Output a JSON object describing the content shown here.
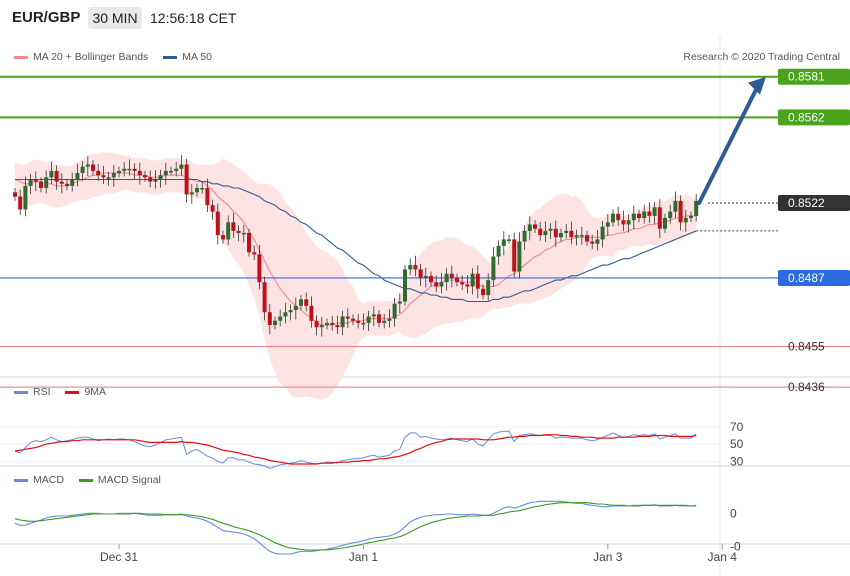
{
  "header": {
    "symbol": "EUR/GBP",
    "timeframe": "30 MIN",
    "clock": "12:56:18 CET"
  },
  "legends": {
    "bollinger": "MA 20 + Bollinger Bands",
    "ma50": "MA 50",
    "copyright": "Research © 2020 Trading Central",
    "rsi": "RSI",
    "rsi_ma": "9MA",
    "macd": "MACD",
    "macd_signal": "MACD Signal"
  },
  "colors": {
    "candle_up": "#2e6b2e",
    "candle_down": "#c0101a",
    "band_fill": "#fde3e3",
    "ma20": "#f08c8c",
    "ma50": "#2e5c93",
    "rsi": "#6a8cd8",
    "rsi_ma": "#e01010",
    "macd": "#6a8cd8",
    "macd_signal": "#3a9a20",
    "resistance": "#4aa31a",
    "support": "#f08c8c",
    "current": "#333333",
    "pivot": "#2b6be0",
    "arrow": "#2e5c93"
  },
  "chart_data": [
    {
      "type": "candlestick",
      "panel": "price",
      "y_range": [
        0.843,
        0.8586
      ],
      "x_ticks": [
        "Dec 31",
        "Jan 1",
        "Jan 3",
        "Jan 4"
      ],
      "levels": [
        {
          "kind": "resistance",
          "label": "0.8581",
          "value": 0.8581
        },
        {
          "kind": "resistance",
          "label": "0.8562",
          "value": 0.8562
        },
        {
          "kind": "current",
          "label": "0.8522",
          "value": 0.8522
        },
        {
          "kind": "pivot",
          "label": "0.8487",
          "value": 0.8487
        },
        {
          "kind": "support",
          "label": "0.8455",
          "value": 0.8455
        },
        {
          "kind": "support",
          "label": "0.8436",
          "value": 0.8436
        }
      ],
      "arrow": {
        "from": 0.8522,
        "to": 0.8581,
        "direction": "up"
      },
      "closes": [
        0.8525,
        0.8519,
        0.853,
        0.8533,
        0.8532,
        0.8529,
        0.8534,
        0.8537,
        0.8532,
        0.8531,
        0.853,
        0.8533,
        0.8536,
        0.8539,
        0.854,
        0.8537,
        0.8535,
        0.8534,
        0.8534,
        0.8536,
        0.8537,
        0.8538,
        0.8538,
        0.8537,
        0.8535,
        0.8534,
        0.8532,
        0.8533,
        0.8535,
        0.8537,
        0.8537,
        0.8538,
        0.854,
        0.8526,
        0.8527,
        0.8529,
        0.8529,
        0.8521,
        0.8518,
        0.8507,
        0.8505,
        0.8513,
        0.8509,
        0.8508,
        0.8508,
        0.8499,
        0.8498,
        0.8485,
        0.8471,
        0.8465,
        0.8467,
        0.8469,
        0.8471,
        0.8472,
        0.8474,
        0.8477,
        0.8474,
        0.8467,
        0.8464,
        0.8465,
        0.8466,
        0.8465,
        0.8464,
        0.8469,
        0.8468,
        0.8467,
        0.8466,
        0.8466,
        0.8469,
        0.847,
        0.8466,
        0.8467,
        0.8468,
        0.8475,
        0.8476,
        0.8491,
        0.8493,
        0.8491,
        0.8487,
        0.8488,
        0.8485,
        0.8483,
        0.8485,
        0.8489,
        0.8487,
        0.8485,
        0.8484,
        0.8483,
        0.8489,
        0.8482,
        0.8479,
        0.8486,
        0.8497,
        0.8502,
        0.8505,
        0.8505,
        0.849,
        0.8504,
        0.8509,
        0.8512,
        0.851,
        0.8507,
        0.8509,
        0.851,
        0.8506,
        0.8508,
        0.8509,
        0.8506,
        0.8507,
        0.8507,
        0.8504,
        0.8503,
        0.8505,
        0.8511,
        0.8513,
        0.8517,
        0.8514,
        0.8512,
        0.8514,
        0.8517,
        0.8515,
        0.8518,
        0.8516,
        0.852,
        0.851,
        0.8515,
        0.8518,
        0.8523,
        0.8513,
        0.8515,
        0.8516,
        0.8523
      ],
      "ma20": [
        0.8533,
        0.8532,
        0.8531,
        0.8531,
        0.8532,
        0.8532,
        0.8531,
        0.8531,
        0.853,
        0.853,
        0.853,
        0.8531,
        0.8532,
        0.8533,
        0.8534,
        0.8535,
        0.8535,
        0.8536,
        0.8536,
        0.8536,
        0.8536,
        0.8536,
        0.8536,
        0.8535,
        0.8535,
        0.8535,
        0.8534,
        0.8534,
        0.8534,
        0.8535,
        0.8535,
        0.8535,
        0.8535,
        0.8534,
        0.8533,
        0.8532,
        0.8532,
        0.853,
        0.8528,
        0.8525,
        0.8523,
        0.8521,
        0.8518,
        0.8516,
        0.8513,
        0.8509,
        0.8505,
        0.85,
        0.8495,
        0.849,
        0.8486,
        0.8482,
        0.8479,
        0.8476,
        0.8474,
        0.8472,
        0.847,
        0.8468,
        0.8466,
        0.8465,
        0.8465,
        0.8465,
        0.8466,
        0.8466,
        0.8466,
        0.8467,
        0.8467,
        0.8467,
        0.8468,
        0.8468,
        0.8468,
        0.8468,
        0.8468,
        0.8469,
        0.847,
        0.8472,
        0.8475,
        0.8477,
        0.8479,
        0.8481,
        0.8483,
        0.8484,
        0.8485,
        0.8486,
        0.8486,
        0.8486,
        0.8485,
        0.8485,
        0.8485,
        0.8484,
        0.8483,
        0.8483,
        0.8483,
        0.8484,
        0.8486,
        0.8488,
        0.8489,
        0.8491,
        0.8493,
        0.8495,
        0.8497,
        0.8498,
        0.85,
        0.8501,
        0.8503,
        0.8504,
        0.8505,
        0.8505,
        0.8506,
        0.8506,
        0.8506,
        0.8506,
        0.8506,
        0.8506,
        0.8507,
        0.8507,
        0.8508,
        0.8508,
        0.8509,
        0.851,
        0.851,
        0.8511,
        0.8512,
        0.8512,
        0.8513,
        0.8513,
        0.8514,
        0.8515,
        0.8515,
        0.8516,
        0.8516,
        0.8516
      ],
      "ma50": [
        0.8533,
        0.8533,
        0.8533,
        0.8533,
        0.8533,
        0.8533,
        0.8533,
        0.8533,
        0.8533,
        0.8533,
        0.8533,
        0.8533,
        0.8533,
        0.8533,
        0.8533,
        0.8533,
        0.8533,
        0.8533,
        0.8533,
        0.8533,
        0.8533,
        0.8533,
        0.8533,
        0.8533,
        0.8533,
        0.8533,
        0.8533,
        0.8533,
        0.8533,
        0.8533,
        0.8533,
        0.8533,
        0.8533,
        0.8533,
        0.8533,
        0.8533,
        0.8532,
        0.8532,
        0.8531,
        0.8531,
        0.853,
        0.853,
        0.8529,
        0.8529,
        0.8528,
        0.8527,
        0.8526,
        0.8525,
        0.8523,
        0.8522,
        0.8521,
        0.8519,
        0.8518,
        0.8516,
        0.8515,
        0.8513,
        0.8512,
        0.851,
        0.8508,
        0.8507,
        0.8505,
        0.8503,
        0.8501,
        0.85,
        0.8498,
        0.8496,
        0.8494,
        0.8493,
        0.8491,
        0.8489,
        0.8488,
        0.8486,
        0.8485,
        0.8484,
        0.8483,
        0.8482,
        0.8482,
        0.8481,
        0.848,
        0.848,
        0.8479,
        0.8479,
        0.8478,
        0.8478,
        0.8477,
        0.8477,
        0.8477,
        0.8476,
        0.8476,
        0.8476,
        0.8476,
        0.8476,
        0.8477,
        0.8477,
        0.8478,
        0.8478,
        0.8479,
        0.848,
        0.8481,
        0.8481,
        0.8482,
        0.8483,
        0.8484,
        0.8485,
        0.8486,
        0.8486,
        0.8487,
        0.8488,
        0.8488,
        0.8489,
        0.849,
        0.8491,
        0.8492,
        0.8493,
        0.8493,
        0.8494,
        0.8495,
        0.8496,
        0.8496,
        0.8497,
        0.8498,
        0.8499,
        0.85,
        0.8501,
        0.8502,
        0.8503,
        0.8504,
        0.8505,
        0.8506,
        0.8507,
        0.8508,
        0.8509
      ]
    },
    {
      "type": "line",
      "panel": "rsi",
      "y_range": [
        20,
        78
      ],
      "y_ticks": [
        70,
        50,
        30
      ],
      "series": [
        {
          "name": "RSI",
          "values": [
            42,
            40,
            46,
            52,
            54,
            53,
            55,
            58,
            55,
            53,
            54,
            55,
            57,
            58,
            58,
            56,
            54,
            55,
            56,
            55,
            56,
            56,
            55,
            53,
            50,
            48,
            47,
            49,
            52,
            55,
            56,
            57,
            58,
            38,
            42,
            44,
            40,
            36,
            34,
            30,
            28,
            34,
            34,
            32,
            32,
            29,
            27,
            26,
            25,
            22,
            24,
            26,
            27,
            28,
            29,
            31,
            29,
            28,
            27,
            28,
            29,
            29,
            28,
            31,
            32,
            33,
            33,
            34,
            36,
            37,
            35,
            36,
            37,
            42,
            44,
            58,
            63,
            63,
            58,
            59,
            57,
            56,
            55,
            56,
            57,
            55,
            54,
            53,
            56,
            50,
            48,
            55,
            62,
            64,
            65,
            65,
            53,
            60,
            61,
            62,
            61,
            60,
            60,
            60,
            57,
            58,
            58,
            57,
            57,
            57,
            55,
            54,
            55,
            58,
            60,
            63,
            60,
            58,
            59,
            61,
            60,
            61,
            60,
            62,
            56,
            58,
            60,
            62,
            57,
            57,
            57,
            62
          ]
        },
        {
          "name": "9MA",
          "values": [
            42,
            43,
            44,
            45,
            46,
            48,
            50,
            51,
            52,
            53,
            53,
            54,
            54,
            55,
            55,
            55,
            55,
            55,
            55,
            55,
            55,
            55,
            55,
            55,
            54,
            53,
            52,
            52,
            52,
            52,
            52,
            52,
            53,
            52,
            52,
            51,
            50,
            49,
            47,
            45,
            43,
            42,
            41,
            40,
            38,
            37,
            35,
            34,
            33,
            31,
            30,
            29,
            28,
            27,
            27,
            27,
            27,
            27,
            27,
            28,
            28,
            28,
            29,
            29,
            29,
            30,
            30,
            31,
            31,
            32,
            33,
            33,
            34,
            35,
            36,
            38,
            40,
            43,
            45,
            48,
            50,
            52,
            53,
            55,
            56,
            56,
            56,
            56,
            56,
            56,
            55,
            55,
            55,
            56,
            57,
            58,
            58,
            59,
            59,
            60,
            60,
            60,
            61,
            61,
            61,
            60,
            60,
            59,
            59,
            58,
            58,
            58,
            57,
            57,
            57,
            57,
            58,
            58,
            58,
            58,
            59,
            59,
            59,
            60,
            60,
            60,
            59,
            59,
            59,
            59,
            59,
            60
          ]
        }
      ]
    },
    {
      "type": "line",
      "panel": "macd",
      "y_range": [
        -0.0007,
        0.00035
      ],
      "y_ticks": [
        0,
        -0.0005
      ],
      "y_tick_labels": [
        "0",
        "-0"
      ],
      "series": [
        {
          "name": "MACD",
          "values": [
            -0.00015,
            -0.00018,
            -0.00018,
            -0.00015,
            -0.00012,
            -0.0001,
            -7e-05,
            -5e-05,
            -4e-05,
            -4e-05,
            -4e-05,
            -3e-05,
            -2e-05,
            -1e-05,
            0.0,
            0.0,
            0.0,
            -1e-05,
            -1e-05,
            -1e-05,
            0.0,
            0.0,
            0.0,
            0.0,
            -1e-05,
            -2e-05,
            -3e-05,
            -3e-05,
            -3e-05,
            -2e-05,
            -2e-05,
            -2e-05,
            -1e-05,
            -4e-05,
            -6e-05,
            -7e-05,
            -9e-05,
            -0.00012,
            -0.00016,
            -0.00021,
            -0.00026,
            -0.00027,
            -0.00028,
            -0.00029,
            -0.00031,
            -0.00034,
            -0.00038,
            -0.00044,
            -0.00051,
            -0.00057,
            -0.0006,
            -0.00061,
            -0.00061,
            -0.00061,
            -0.00059,
            -0.00057,
            -0.00057,
            -0.00057,
            -0.00056,
            -0.00055,
            -0.00054,
            -0.00052,
            -0.0005,
            -0.00048,
            -0.00046,
            -0.00044,
            -0.00043,
            -0.00041,
            -0.00039,
            -0.00037,
            -0.00036,
            -0.00035,
            -0.00034,
            -0.00031,
            -0.00027,
            -0.0002,
            -0.00013,
            -9e-05,
            -6e-05,
            -4e-05,
            -3e-05,
            -2e-05,
            -2e-05,
            -1e-05,
            -1e-05,
            -2e-05,
            -2e-05,
            -2e-05,
            -1e-05,
            -2e-05,
            -3e-05,
            -3e-05,
            0.0,
            4e-05,
            8e-05,
            0.0001,
            8e-05,
            0.0001,
            0.00013,
            0.00016,
            0.00017,
            0.00018,
            0.00018,
            0.00018,
            0.00018,
            0.00018,
            0.00017,
            0.00016,
            0.00015,
            0.00015,
            0.00013,
            0.00012,
            0.00011,
            0.0001,
            0.0001,
            0.00011,
            0.00011,
            0.00011,
            0.00011,
            0.00012,
            0.00012,
            0.00012,
            0.00012,
            0.00013,
            0.00011,
            0.00011,
            0.00011,
            0.00012,
            0.00011,
            0.00011,
            0.00011,
            0.00012
          ]
        },
        {
          "name": "MACD Signal",
          "values": [
            -8e-05,
            -0.0001,
            -0.00011,
            -0.00012,
            -0.00012,
            -0.00011,
            -0.0001,
            -9e-05,
            -8e-05,
            -7e-05,
            -6e-05,
            -5e-05,
            -4e-05,
            -3e-05,
            -2e-05,
            -1e-05,
            -1e-05,
            -1e-05,
            -1e-05,
            -1e-05,
            -1e-05,
            -1e-05,
            -1e-05,
            0.0,
            0.0,
            -1e-05,
            -1e-05,
            -1e-05,
            -1e-05,
            -2e-05,
            -2e-05,
            -2e-05,
            -2e-05,
            -2e-05,
            -3e-05,
            -4e-05,
            -5e-05,
            -7e-05,
            -9e-05,
            -0.00012,
            -0.00015,
            -0.00017,
            -0.0002,
            -0.00022,
            -0.00024,
            -0.00026,
            -0.00029,
            -0.00032,
            -0.00036,
            -0.0004,
            -0.00044,
            -0.00047,
            -0.0005,
            -0.00052,
            -0.00053,
            -0.00054,
            -0.00055,
            -0.00055,
            -0.00055,
            -0.00055,
            -0.00055,
            -0.00054,
            -0.00053,
            -0.00052,
            -0.00051,
            -0.00049,
            -0.00048,
            -0.00046,
            -0.00044,
            -0.00043,
            -0.00041,
            -0.0004,
            -0.00038,
            -0.00037,
            -0.00035,
            -0.00032,
            -0.00028,
            -0.00024,
            -0.0002,
            -0.00017,
            -0.00014,
            -0.00012,
            -0.0001,
            -8e-05,
            -7e-05,
            -6e-05,
            -5e-05,
            -4e-05,
            -4e-05,
            -4e-05,
            -3e-05,
            -3e-05,
            -3e-05,
            -1e-05,
            0.0,
            2e-05,
            3e-05,
            4e-05,
            6e-05,
            8e-05,
            0.0001,
            0.00011,
            0.00013,
            0.00014,
            0.00015,
            0.00016,
            0.00016,
            0.00016,
            0.00016,
            0.00016,
            0.00016,
            0.00015,
            0.00014,
            0.00014,
            0.00013,
            0.00012,
            0.00012,
            0.00012,
            0.00011,
            0.00011,
            0.00011,
            0.00012,
            0.00012,
            0.00012,
            0.00012,
            0.00012,
            0.00012,
            0.00012,
            0.00012,
            0.00012,
            0.00011,
            0.00011
          ]
        }
      ]
    }
  ]
}
